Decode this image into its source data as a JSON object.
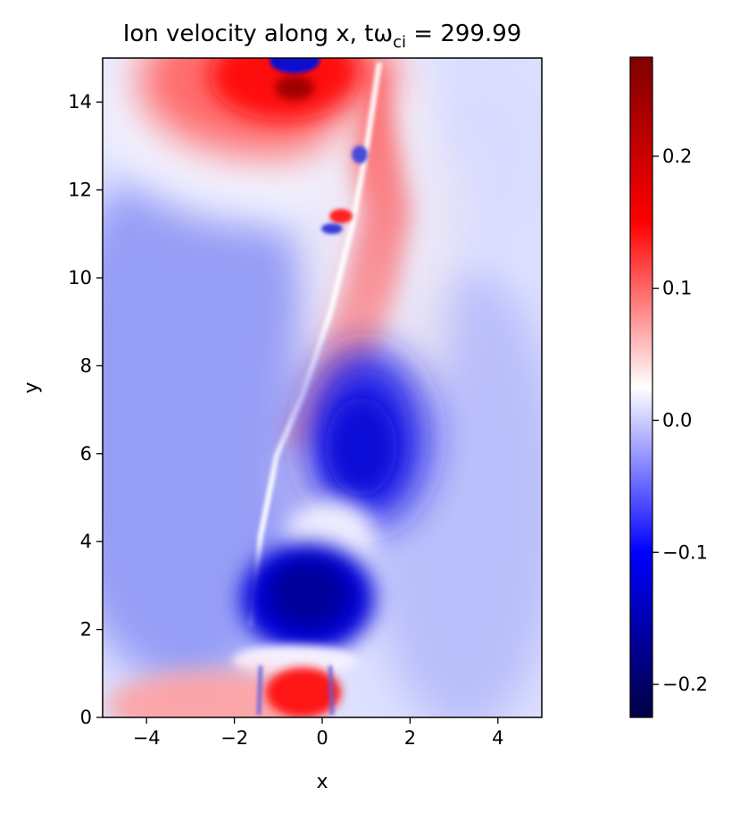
{
  "chart_data": {
    "type": "heatmap",
    "title": "Ion velocity along x, tω",
    "title_subscript": "ci",
    "title_suffix": " = 299.99",
    "xlabel": "x",
    "ylabel": "y",
    "xlim": [
      -5,
      5
    ],
    "ylim": [
      0,
      15
    ],
    "xticks": [
      -4,
      -2,
      0,
      2,
      4
    ],
    "xtick_labels": [
      "−4",
      "−2",
      "0",
      "2",
      "4"
    ],
    "yticks": [
      0,
      2,
      4,
      6,
      8,
      10,
      12,
      14
    ],
    "ytick_labels": [
      "0",
      "2",
      "4",
      "6",
      "8",
      "10",
      "12",
      "14"
    ],
    "colorbar": {
      "colormap": "seismic",
      "vmin": -0.225,
      "vmax": 0.275,
      "ticks": [
        -0.2,
        -0.1,
        0.0,
        0.1,
        0.2
      ],
      "tick_labels": [
        "−0.2",
        "−0.1",
        "0.0",
        "0.1",
        "0.2"
      ]
    },
    "features": [
      {
        "label": "red lobe top",
        "x": -1.2,
        "y": 14.3,
        "value": 0.2
      },
      {
        "label": "blue cap top",
        "x": -0.5,
        "y": 14.8,
        "value": -0.2
      },
      {
        "label": "red diagonal sheet",
        "x": 0.8,
        "y": 10.5,
        "value": 0.1
      },
      {
        "label": "blue region right",
        "x": 1.0,
        "y": 6.0,
        "value": -0.15
      },
      {
        "label": "dark blue core",
        "x": -0.2,
        "y": 2.5,
        "value": -0.22
      },
      {
        "label": "red lobe bottom",
        "x": -0.5,
        "y": 0.6,
        "value": 0.22
      },
      {
        "label": "background left",
        "x": -3.5,
        "y": 7.0,
        "value": -0.07
      }
    ]
  }
}
